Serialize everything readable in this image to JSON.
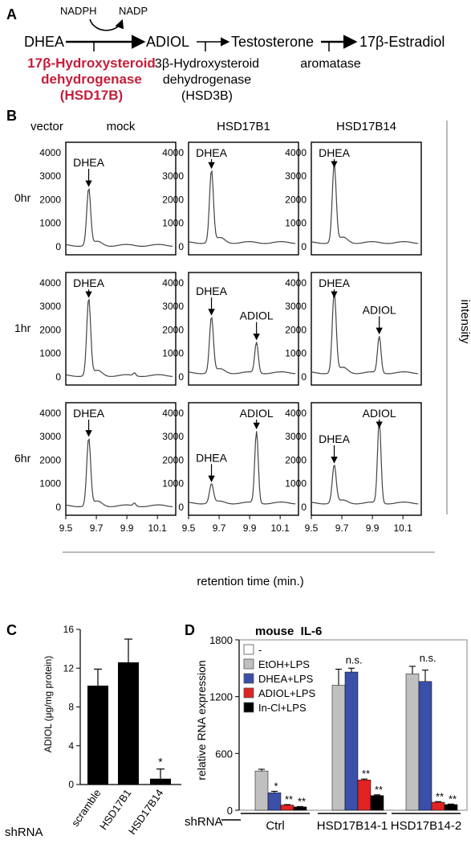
{
  "figure": {
    "panel_labels": {
      "a": "A",
      "b": "B",
      "c": "C",
      "d": "D"
    }
  },
  "pathway": {
    "nadph": "NADPH",
    "nadp": "NADP",
    "dhea": "DHEA",
    "adiol": "ADIOL",
    "testosterone": "Testosterone",
    "estradiol": "17β-Estradiol",
    "hsd17b": [
      "17β-Hydroxysteroid",
      "dehydrogenase",
      "(HSD17B)"
    ],
    "hsd3b": [
      "3β-Hydroxysteroid",
      "dehydrogenase",
      "(HSD3B)"
    ],
    "aromatase": "aromatase",
    "highlight_color": "#c41e3a"
  },
  "chromatograms": {
    "vector_label": "vector",
    "columns": [
      "mock",
      "HSD17B1",
      "HSD17B14"
    ],
    "rows": [
      "0hr",
      "1hr",
      "6hr"
    ],
    "y_ticks": [
      "4000",
      "3000",
      "2000",
      "1000",
      "0"
    ],
    "x_ticks": [
      "9.5",
      "9.7",
      "9.9",
      "10.1"
    ],
    "x_axis_label": "retention time (min.)",
    "y_axis_label": "intensity",
    "panels": [
      {
        "row": 0,
        "col": 0,
        "dhea_peak": 2400,
        "adiol_peak": 0,
        "labels": [
          "DHEA"
        ]
      },
      {
        "row": 0,
        "col": 1,
        "dhea_peak": 3050,
        "adiol_peak": 0,
        "labels": [
          "DHEA"
        ]
      },
      {
        "row": 0,
        "col": 2,
        "dhea_peak": 3300,
        "adiol_peak": 0,
        "labels": [
          "DHEA"
        ]
      },
      {
        "row": 1,
        "col": 0,
        "dhea_peak": 3250,
        "adiol_peak": 0,
        "labels": [
          "DHEA"
        ]
      },
      {
        "row": 1,
        "col": 1,
        "dhea_peak": 2350,
        "adiol_peak": 1300,
        "labels": [
          "DHEA",
          "ADIOL"
        ]
      },
      {
        "row": 1,
        "col": 2,
        "dhea_peak": 3400,
        "adiol_peak": 1550,
        "labels": [
          "DHEA",
          "ADIOL"
        ]
      },
      {
        "row": 2,
        "col": 0,
        "dhea_peak": 2850,
        "adiol_peak": 0,
        "labels": [
          "DHEA"
        ]
      },
      {
        "row": 2,
        "col": 1,
        "dhea_peak": 800,
        "adiol_peak": 3050,
        "labels": [
          "DHEA",
          "ADIOL"
        ]
      },
      {
        "row": 2,
        "col": 2,
        "dhea_peak": 1600,
        "adiol_peak": 3500,
        "labels": [
          "DHEA",
          "ADIOL"
        ]
      }
    ]
  },
  "chart_data": [
    {
      "type": "bar",
      "panel": "C",
      "ylabel": "ADIOL (μg/mg protein)",
      "xlabel": "shRNA",
      "categories": [
        "scramble",
        "HSD17B1",
        "HSD17B14"
      ],
      "values": [
        10.2,
        12.6,
        0.6
      ],
      "errors": [
        1.7,
        2.4,
        1.0
      ],
      "significance": [
        "",
        "",
        "*"
      ],
      "ylim": [
        0,
        16
      ],
      "y_ticks": [
        "0",
        "4",
        "8",
        "12",
        "16"
      ],
      "color": "#000000"
    },
    {
      "type": "bar",
      "panel": "D",
      "title": "mouse  IL-6",
      "ylabel": "relative RNA expression",
      "xlabel": "shRNA",
      "categories": [
        "Ctrl",
        "HSD17B14-1",
        "HSD17B14-2"
      ],
      "ylim": [
        0,
        1800
      ],
      "y_ticks": [
        "0",
        "600",
        "1200",
        "1800"
      ],
      "legend_position": "top-left",
      "series": [
        {
          "name": "-",
          "color": "#ffffff",
          "values": [
            0,
            0,
            0
          ],
          "errors": [
            0,
            0,
            0
          ],
          "sig": [
            "",
            "",
            ""
          ]
        },
        {
          "name": "EtOH+LPS",
          "color": "#c0c0c0",
          "values": [
            415,
            1320,
            1440
          ],
          "errors": [
            18,
            170,
            80
          ],
          "sig": [
            "",
            "",
            ""
          ]
        },
        {
          "name": "DHEA+LPS",
          "color": "#3a4fa8",
          "values": [
            185,
            1460,
            1360
          ],
          "errors": [
            15,
            40,
            120
          ],
          "sig": [
            "*",
            "",
            ""
          ]
        },
        {
          "name": "ADIOL+LPS",
          "color": "#e02323",
          "values": [
            55,
            320,
            85
          ],
          "errors": [
            5,
            10,
            6
          ],
          "sig": [
            "**",
            "**",
            "**"
          ]
        },
        {
          "name": "In-Cl+LPS",
          "color": "#000000",
          "values": [
            35,
            155,
            60
          ],
          "errors": [
            4,
            8,
            5
          ],
          "sig": [
            "**",
            "**",
            "**"
          ]
        }
      ],
      "group_notes": [
        "",
        "n.s.",
        "n.s."
      ]
    }
  ]
}
